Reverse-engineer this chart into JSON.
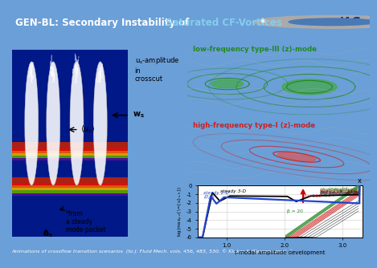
{
  "title_left": "GEN-BL: Secondary Instability of ",
  "title_highlight": "Saturated CF-Vortices",
  "title_star": "*",
  "title_bg": "#4a7ab5",
  "title_fg": "white",
  "title_highlight_color": "#88ccee",
  "main_bg": "#6a9fd8",
  "footer_text": "Animations of crossflow transition scenarios  (to J. Fluid Mech. vols. 456, 483, 530. © Kloker & Wassermann)  1",
  "footer_bg": "#4a7ab5",
  "footer_fg": "white",
  "plot_bg": "white",
  "plot_xlabel": "t-modal amplitude development",
  "plot_xlim": [
    0.5,
    3.35
  ],
  "plot_ylim": [
    -6,
    0
  ],
  "plot_yticks": [
    0,
    -1,
    -2,
    -3,
    -4,
    -5,
    -6
  ],
  "plot_xticks": [
    1.0,
    2.0,
    3.0
  ],
  "plot_xticklabels": [
    "1.0",
    "2.0",
    "3.0"
  ],
  "box1_text": "low-frequency type-III (z)-mode",
  "box1_text_color": "#228822",
  "box1_bg": "#e8f5e8",
  "box2_text": "high-frequency type-I (z)-mode",
  "box2_text_color": "#cc2222",
  "box2_bg": "#f5ecec",
  "annotation_steady3d": "steady 3-D",
  "annotation_steady2d": "steady 2-D\n(0,0)",
  "annotation_beta160": "β= 160",
  "annotation_beta20": "β = 20",
  "arrow_color": "#cc0000",
  "color_3d": "black",
  "color_2d": "#2244cc",
  "color_red": "#cc2222",
  "color_green": "#228822"
}
